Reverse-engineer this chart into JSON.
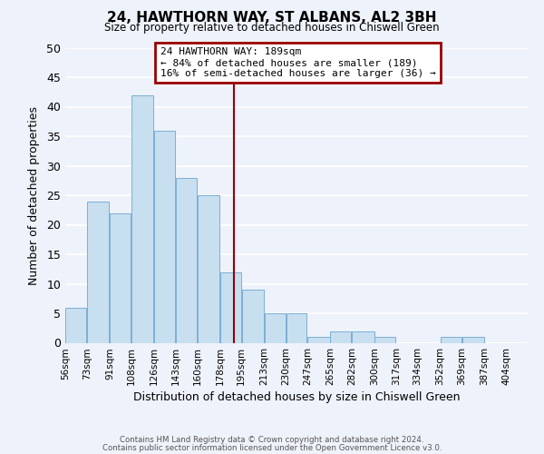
{
  "title": "24, HAWTHORN WAY, ST ALBANS, AL2 3BH",
  "subtitle": "Size of property relative to detached houses in Chiswell Green",
  "xlabel": "Distribution of detached houses by size in Chiswell Green",
  "ylabel": "Number of detached properties",
  "bar_left_edges": [
    56,
    73,
    91,
    108,
    126,
    143,
    160,
    178,
    195,
    213,
    230,
    247,
    265,
    282,
    300,
    317,
    334,
    352,
    369,
    387
  ],
  "bar_widths": [
    17,
    18,
    17,
    18,
    17,
    17,
    18,
    17,
    18,
    17,
    17,
    18,
    17,
    18,
    17,
    17,
    18,
    17,
    18,
    17
  ],
  "bar_heights": [
    6,
    24,
    22,
    42,
    36,
    28,
    25,
    12,
    9,
    5,
    5,
    1,
    2,
    2,
    1,
    0,
    0,
    1,
    1,
    0
  ],
  "bar_color": "#c8dff0",
  "bar_edgecolor": "#7bafd4",
  "xlim_left": 56,
  "xlim_right": 421,
  "ylim_top": 50,
  "ylim_bottom": 0,
  "tick_labels": [
    "56sqm",
    "73sqm",
    "91sqm",
    "108sqm",
    "126sqm",
    "143sqm",
    "160sqm",
    "178sqm",
    "195sqm",
    "213sqm",
    "230sqm",
    "247sqm",
    "265sqm",
    "282sqm",
    "300sqm",
    "317sqm",
    "334sqm",
    "352sqm",
    "369sqm",
    "387sqm",
    "404sqm"
  ],
  "tick_positions": [
    56,
    73,
    91,
    108,
    126,
    143,
    160,
    178,
    195,
    213,
    230,
    247,
    265,
    282,
    300,
    317,
    334,
    352,
    369,
    387,
    404
  ],
  "yticks": [
    0,
    5,
    10,
    15,
    20,
    25,
    30,
    35,
    40,
    45,
    50
  ],
  "vline_x": 189,
  "vline_color": "#990000",
  "annotation_title": "24 HAWTHORN WAY: 189sqm",
  "annotation_line1": "← 84% of detached houses are smaller (189)",
  "annotation_line2": "16% of semi-detached houses are larger (36) →",
  "annotation_box_color": "#990000",
  "annotation_bg_color": "#ffffff",
  "footer1": "Contains HM Land Registry data © Crown copyright and database right 2024.",
  "footer2": "Contains public sector information licensed under the Open Government Licence v3.0.",
  "background_color": "#eef2fa",
  "grid_color": "#ffffff"
}
